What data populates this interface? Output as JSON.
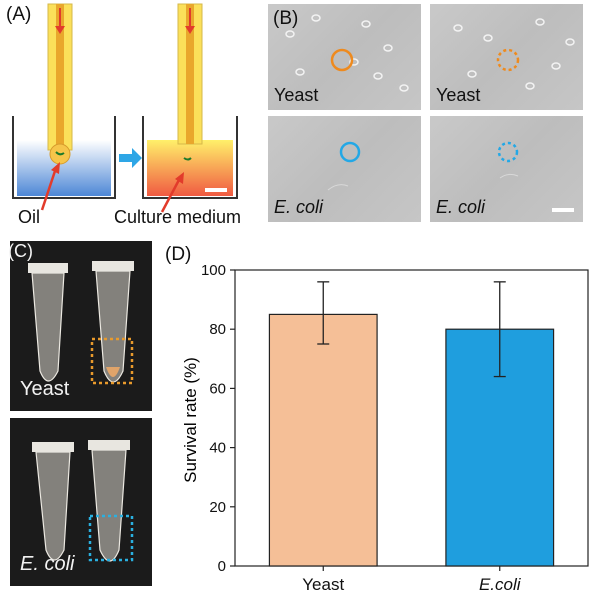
{
  "panels": {
    "a": {
      "label": "(A)",
      "left_caption": "Oil",
      "right_caption": "Culture medium"
    },
    "b": {
      "label": "(B)",
      "images": [
        {
          "caption": "Yeast",
          "italic": false,
          "marker": "solid",
          "color": "#ee8a1e"
        },
        {
          "caption": "Yeast",
          "italic": false,
          "marker": "dotted",
          "color": "#ee8a1e"
        },
        {
          "caption": "E. coli",
          "italic": true,
          "marker": "solid",
          "color": "#23a8e6"
        },
        {
          "caption": "E. coli",
          "italic": true,
          "marker": "dotted",
          "color": "#23a8e6"
        }
      ]
    },
    "c": {
      "label": "(C)",
      "photos": [
        {
          "caption": "Yeast",
          "italic": false,
          "box_color": "#e89a2c"
        },
        {
          "caption": "E. coli",
          "italic": true,
          "box_color": "#2ab0e0"
        }
      ]
    },
    "d": {
      "label": "(D)"
    }
  },
  "chart_data": {
    "type": "bar",
    "categories": [
      "Yeast",
      "E.coli"
    ],
    "values": [
      85,
      80
    ],
    "error_bars": [
      [
        75,
        96
      ],
      [
        64,
        96
      ]
    ],
    "colors": [
      "#f5bf97",
      "#1f9ede"
    ],
    "ylabel": "Survival rate (%)",
    "xlabel": "",
    "ylim": [
      0,
      100
    ],
    "yticks": [
      0,
      20,
      40,
      60,
      80,
      100
    ],
    "grid": false
  }
}
